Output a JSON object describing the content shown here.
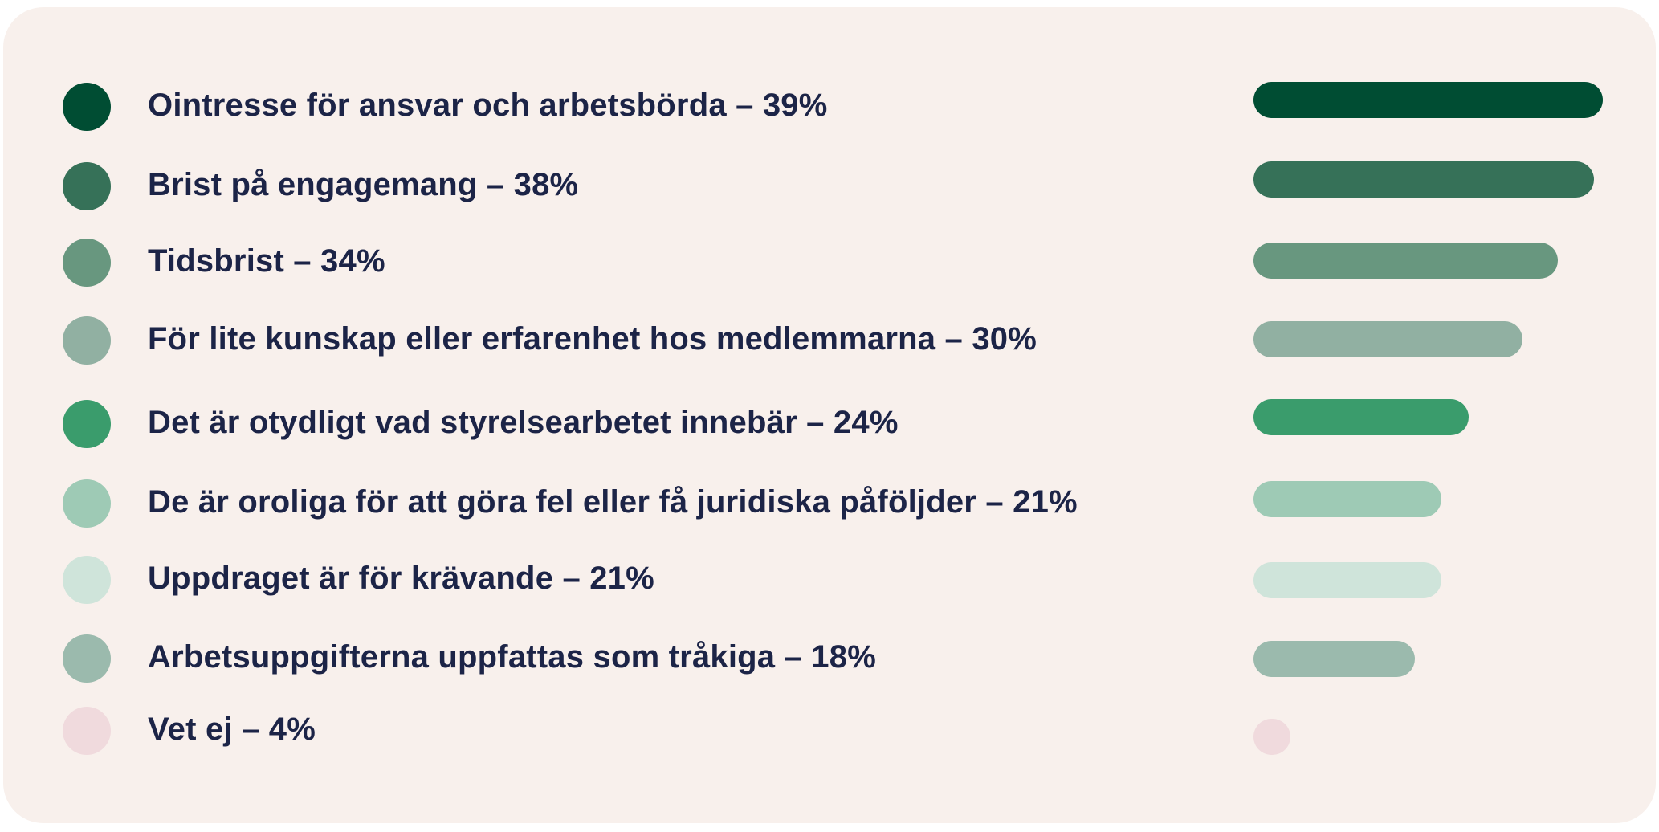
{
  "chart_data": {
    "type": "bar",
    "orientation": "horizontal",
    "grid": false,
    "legend": "left",
    "xlim": [
      0,
      39
    ],
    "unit": "%",
    "categories": [
      "Ointresse för ansvar och arbetsbörda – 39%",
      "Brist på engagemang – 38%",
      "Tidsbrist – 34%",
      "För lite kunskap eller erfarenhet hos medlemmarna – 30%",
      "Det är otydligt vad styrelsearbetet innebär – 24%",
      "De är oroliga för att göra fel eller få juridiska påföljder – 21%",
      "Uppdraget är för krävande – 21%",
      "Arbetsuppgifterna uppfattas som tråkiga – 18%",
      "Vet ej – 4%"
    ],
    "values": [
      39,
      38,
      34,
      30,
      24,
      21,
      21,
      18,
      4
    ],
    "colors": [
      "#004d33",
      "#367158",
      "#68977f",
      "#91b0a2",
      "#3a9c6c",
      "#9ecab5",
      "#cfe4da",
      "#9bbaad",
      "#f0dadd"
    ]
  }
}
